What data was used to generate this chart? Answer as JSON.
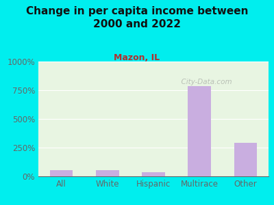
{
  "title": "Change in per capita income between\n2000 and 2022",
  "subtitle": "Mazon, IL",
  "categories": [
    "All",
    "White",
    "Hispanic",
    "Multirace",
    "Other"
  ],
  "values": [
    55,
    55,
    35,
    785,
    290
  ],
  "bar_color": "#c9aee0",
  "background_color": "#00eeee",
  "plot_bg": "#e8f5e2",
  "title_color": "#111111",
  "subtitle_color": "#b03030",
  "axis_color": "#666666",
  "watermark": "  City-Data.com",
  "ylim": [
    0,
    1000
  ],
  "yticks": [
    0,
    250,
    500,
    750,
    1000
  ],
  "ytick_labels": [
    "0%",
    "250%",
    "500%",
    "750%",
    "1000%"
  ]
}
